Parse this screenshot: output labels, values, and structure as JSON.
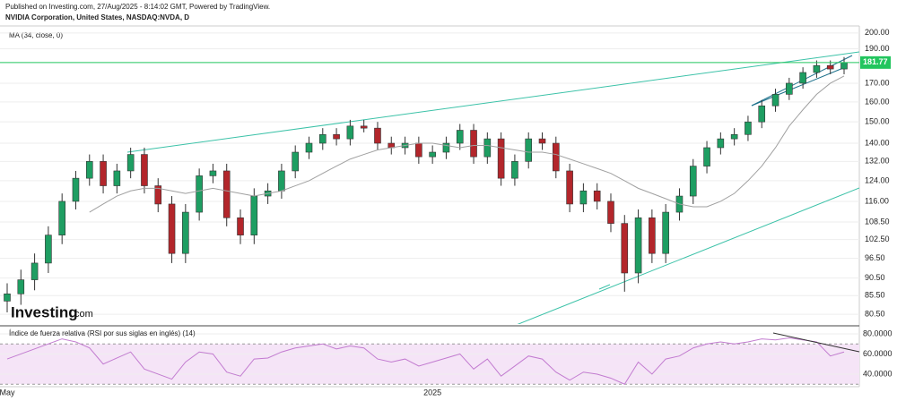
{
  "header": {
    "published": "Published on Investing.com, 27/Aug/2025 - 8:14:02 GMT, Powered by TradingView.",
    "symbol": "NVIDIA Corporation, United States, NASDAQ:NVDA, D"
  },
  "logo": {
    "text": "Investing",
    "suffix": ".com"
  },
  "chart_data": [
    {
      "type": "candlestick",
      "indicator_label": "MA (34, close, 0)",
      "log_scale": true,
      "grid": true,
      "up_color": "#1e9e62",
      "down_color": "#b3262b",
      "ma_color": "#a0a0a0",
      "last_price_color": "#22c55e",
      "categories": [
        "May",
        null,
        null,
        null,
        null,
        null,
        null,
        null,
        null,
        null,
        null,
        null,
        null,
        null,
        null,
        null,
        null,
        null,
        null,
        null,
        null,
        null,
        null,
        null,
        null,
        null,
        null,
        null,
        null,
        null,
        null,
        "2025",
        null,
        null,
        null,
        null,
        null,
        null,
        null,
        null,
        null,
        null,
        null,
        null,
        null,
        null,
        null,
        null,
        null,
        null,
        null,
        null,
        null,
        null,
        null,
        null,
        null,
        null,
        null,
        null,
        null,
        null
      ],
      "open": [
        84,
        86,
        90,
        95,
        104,
        116,
        125,
        132,
        122,
        128,
        135,
        122,
        115,
        98,
        112,
        126,
        128,
        110,
        104,
        118,
        120,
        128,
        136,
        140,
        144,
        142,
        148,
        147,
        140,
        138,
        140,
        134,
        136,
        140,
        146,
        134,
        142,
        125,
        132,
        142,
        140,
        128,
        115,
        120,
        116,
        108,
        92,
        110,
        98,
        112,
        118,
        130,
        138,
        142,
        144,
        150,
        158,
        164,
        170,
        176,
        180,
        178
      ],
      "high": [
        89,
        93,
        98,
        107,
        119,
        128,
        135,
        135,
        131,
        138,
        138,
        125,
        118,
        115,
        129,
        131,
        131,
        113,
        121,
        123,
        131,
        139,
        143,
        147,
        147,
        151,
        151,
        150,
        143,
        143,
        143,
        139,
        143,
        149,
        149,
        145,
        145,
        135,
        145,
        145,
        143,
        131,
        123,
        123,
        119,
        111,
        113,
        113,
        115,
        121,
        133,
        141,
        145,
        147,
        153,
        161,
        167,
        173,
        179,
        183,
        183,
        185
      ],
      "low": [
        81,
        83,
        87,
        92,
        101,
        113,
        122,
        119,
        119,
        125,
        119,
        112,
        95,
        95,
        109,
        123,
        107,
        101,
        101,
        115,
        117,
        125,
        133,
        137,
        139,
        139,
        145,
        137,
        135,
        135,
        131,
        131,
        133,
        137,
        131,
        131,
        122,
        122,
        129,
        137,
        125,
        112,
        112,
        113,
        105,
        86.6,
        89,
        95,
        95,
        109,
        115,
        127,
        135,
        139,
        141,
        147,
        155,
        161,
        167,
        173,
        175,
        175
      ],
      "close": [
        86,
        90,
        95,
        104,
        116,
        125,
        132,
        122,
        128,
        135,
        122,
        115,
        98,
        112,
        126,
        128,
        110,
        104,
        118,
        120,
        128,
        136,
        140,
        144,
        142,
        148,
        147,
        140,
        138,
        140,
        134,
        136,
        140,
        146,
        134,
        142,
        125,
        132,
        142,
        140,
        128,
        115,
        120,
        116,
        108,
        92,
        110,
        98,
        112,
        118,
        130,
        138,
        142,
        144,
        150,
        158,
        164,
        170,
        176,
        180,
        178,
        181.77
      ],
      "ma": [
        null,
        null,
        null,
        null,
        null,
        null,
        112,
        115,
        118,
        120,
        121,
        121,
        120,
        119,
        120,
        121,
        120,
        119,
        118,
        119,
        120,
        122,
        124,
        127,
        130,
        133,
        135,
        137,
        138,
        139,
        140,
        140,
        139,
        138,
        139,
        139,
        138,
        137,
        136,
        136,
        135,
        133,
        131,
        129,
        127,
        124,
        121,
        119,
        117,
        115,
        114,
        114,
        116,
        119,
        124,
        130,
        138,
        148,
        156,
        164,
        170,
        174
      ],
      "ylim": [
        78,
        204
      ],
      "yticks": [
        {
          "value": 80.5,
          "label": "80.50"
        },
        {
          "value": 85.5,
          "label": "85.50"
        },
        {
          "value": 90.5,
          "label": "90.50"
        },
        {
          "value": 96.5,
          "label": "96.50"
        },
        {
          "value": 102.5,
          "label": "102.50"
        },
        {
          "value": 108.5,
          "label": "108.50"
        },
        {
          "value": 116,
          "label": "116.00"
        },
        {
          "value": 124,
          "label": "124.00"
        },
        {
          "value": 132,
          "label": "132.00"
        },
        {
          "value": 140,
          "label": "140.00"
        },
        {
          "value": 150,
          "label": "150.00"
        },
        {
          "value": 160,
          "label": "160.00"
        },
        {
          "value": 170,
          "label": "170.00"
        },
        {
          "value": 190,
          "label": "190.00"
        },
        {
          "value": 200,
          "label": "200.00"
        }
      ]
    },
    {
      "type": "line",
      "title": "Índice de fuerza relativa (RSI por sus siglas en inglés) (14)",
      "color": "#c27bd0",
      "band_color": "#f5e4f7",
      "values": [
        55,
        60,
        65,
        70,
        75,
        72,
        66,
        50,
        56,
        62,
        45,
        40,
        35,
        52,
        62,
        60,
        42,
        38,
        55,
        56,
        62,
        66,
        68,
        70,
        65,
        68,
        66,
        55,
        52,
        55,
        48,
        52,
        56,
        60,
        45,
        55,
        38,
        48,
        58,
        55,
        42,
        34,
        42,
        40,
        36,
        30,
        52,
        40,
        55,
        58,
        66,
        70,
        72,
        70,
        72,
        75,
        74,
        76,
        74,
        72,
        58,
        62
      ],
      "bands": [
        30,
        70
      ],
      "ylim": [
        29.3,
        85.3
      ],
      "yticks": [
        {
          "value": 40,
          "label": "40.0000"
        },
        {
          "value": 60,
          "label": "60.0000"
        },
        {
          "value": 80,
          "label": "80.0000"
        }
      ]
    }
  ]
}
